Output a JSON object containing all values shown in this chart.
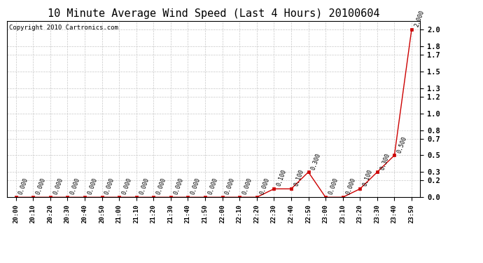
{
  "title": "10 Minute Average Wind Speed (Last 4 Hours) 20100604",
  "copyright": "Copyright 2010 Cartronics.com",
  "x_labels": [
    "20:00",
    "20:10",
    "20:20",
    "20:30",
    "20:40",
    "20:50",
    "21:00",
    "21:10",
    "21:20",
    "21:30",
    "21:40",
    "21:50",
    "22:00",
    "22:10",
    "22:20",
    "22:30",
    "22:40",
    "22:50",
    "23:00",
    "23:10",
    "23:20",
    "23:30",
    "23:40",
    "23:50"
  ],
  "y_values": [
    0.0,
    0.0,
    0.0,
    0.0,
    0.0,
    0.0,
    0.0,
    0.0,
    0.0,
    0.0,
    0.0,
    0.0,
    0.0,
    0.0,
    0.0,
    0.1,
    0.1,
    0.3,
    0.0,
    0.0,
    0.1,
    0.3,
    0.5,
    2.0
  ],
  "line_color": "#cc0000",
  "marker_color": "#cc0000",
  "bg_color": "#ffffff",
  "grid_color": "#c8c8c8",
  "title_fontsize": 11,
  "copyright_fontsize": 6.5,
  "label_fontsize": 6,
  "ylim": [
    0.0,
    2.1
  ],
  "yticks": [
    0.0,
    0.2,
    0.3,
    0.5,
    0.7,
    0.8,
    1.0,
    1.2,
    1.3,
    1.5,
    1.7,
    1.8,
    2.0
  ]
}
